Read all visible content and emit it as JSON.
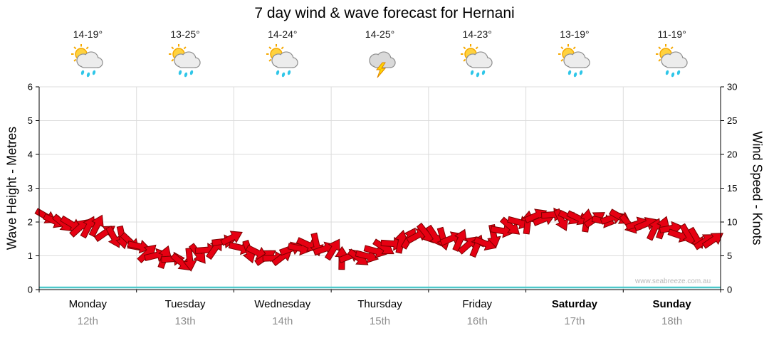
{
  "title": "7 day wind & wave forecast for Hernani",
  "watermark": "www.seabreeze.com.au",
  "axes": {
    "left_label": "Wave Height - Metres",
    "right_label": "Wind Speed - Knots",
    "left_ticks": [
      0,
      1,
      2,
      3,
      4,
      5,
      6
    ],
    "right_ticks": [
      0,
      5,
      10,
      15,
      20,
      25,
      30
    ]
  },
  "chart_data": {
    "type": "line",
    "title": "7 day wind & wave forecast for Hernani",
    "left_axis": {
      "label": "Wave Height - Metres",
      "range": [
        0,
        6
      ]
    },
    "right_axis": {
      "label": "Wind Speed - Knots",
      "range": [
        0,
        30
      ]
    },
    "grid": true,
    "days": [
      {
        "name": "Monday",
        "date": "12th",
        "temp": "14-19°",
        "icon": "sun-cloud-showers",
        "weekend": false
      },
      {
        "name": "Tuesday",
        "date": "13th",
        "temp": "13-25°",
        "icon": "sun-cloud-showers",
        "weekend": false
      },
      {
        "name": "Wednesday",
        "date": "14th",
        "temp": "14-24°",
        "icon": "sun-cloud-showers",
        "weekend": false
      },
      {
        "name": "Thursday",
        "date": "15th",
        "temp": "14-25°",
        "icon": "thunderstorm",
        "weekend": false
      },
      {
        "name": "Friday",
        "date": "16th",
        "temp": "14-23°",
        "icon": "sun-cloud-showers",
        "weekend": false
      },
      {
        "name": "Saturday",
        "date": "17th",
        "temp": "13-19°",
        "icon": "sun-cloud-showers",
        "weekend": true
      },
      {
        "name": "Sunday",
        "date": "18th",
        "temp": "11-19°",
        "icon": "sun-cloud-showers",
        "weekend": true
      }
    ],
    "wind_speed_knots": [
      10.5,
      10,
      9.5,
      9,
      9.5,
      8.5,
      8,
      7,
      6,
      5,
      4.5,
      4,
      4.5,
      5,
      6.5,
      7.5,
      6.5,
      5.5,
      5,
      4.5,
      5.5,
      6,
      6.5,
      6,
      5.5,
      4.5,
      5,
      5.5,
      6.5,
      7,
      7.5,
      8,
      8,
      7.5,
      7,
      6.5,
      7,
      8,
      9,
      10,
      10.5,
      10.5,
      11,
      10.5,
      10.5,
      10,
      10,
      10.5,
      10,
      9.5,
      9.5,
      9,
      8.5,
      8,
      7.5,
      7
    ],
    "wave_height_m": 0,
    "series_color": "#e60012",
    "arrow_outline_color": "#7d0000",
    "wave_color": "#4cc8ca",
    "gridline_color": "#dcdcdc"
  }
}
